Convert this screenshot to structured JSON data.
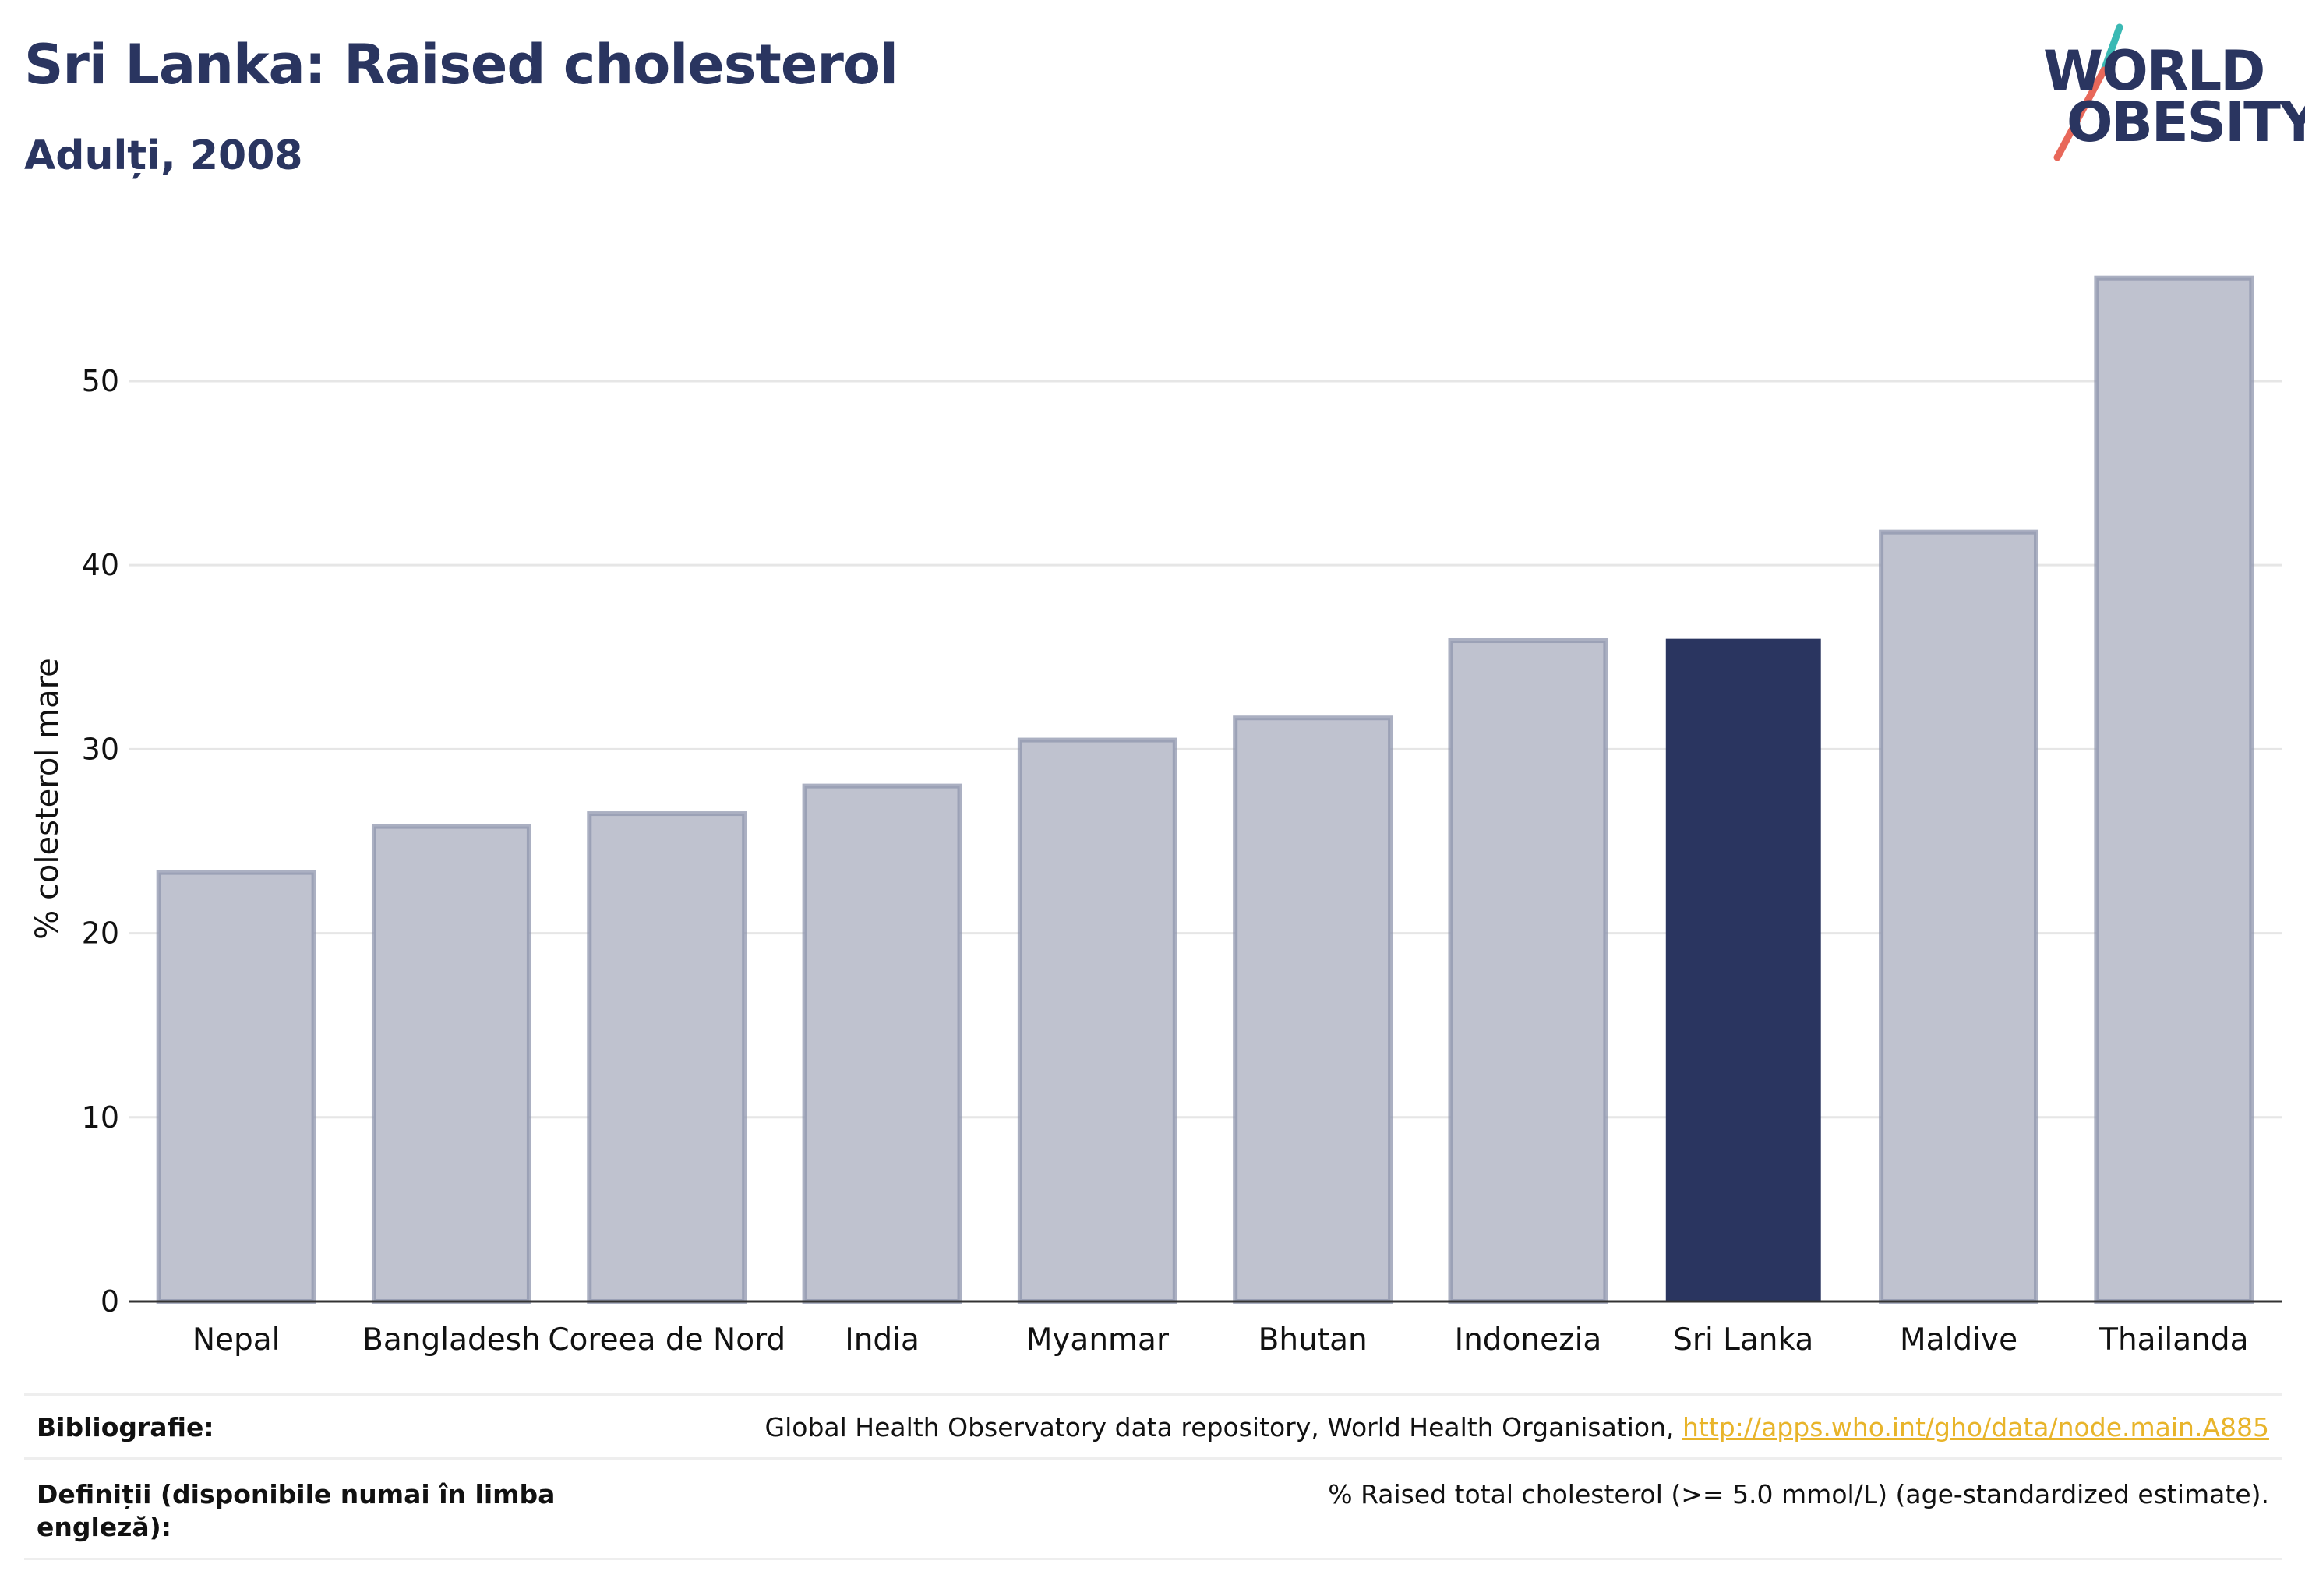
{
  "header": {
    "title": "Sri Lanka: Raised cholesterol",
    "subtitle": "Adulți, 2008"
  },
  "logo": {
    "line1": "WORLD",
    "line2": "OBESITY"
  },
  "chart_data": {
    "type": "bar",
    "categories": [
      "Nepal",
      "Bangladesh",
      "Coreea de Nord",
      "India",
      "Myanmar",
      "Bhutan",
      "Indonezia",
      "Sri Lanka",
      "Maldive",
      "Thailanda"
    ],
    "values": [
      23.3,
      25.8,
      26.5,
      28.0,
      30.5,
      31.7,
      35.9,
      36.0,
      41.8,
      55.6
    ],
    "highlight": "Sri Lanka",
    "ylabel": "% colesterol mare",
    "xlabel": "",
    "ylim": [
      0,
      58
    ],
    "yticks": [
      0,
      10,
      20,
      30,
      40,
      50
    ],
    "grid": true,
    "colors": {
      "bar": "#bfc2cf",
      "bar_border": "#8f95ae",
      "highlight": "#2a3560",
      "axis": "#333333",
      "grid": "#e6e6e6"
    }
  },
  "footer": {
    "source_label": "Bibliografie:",
    "source_text": "Global Health Observatory data repository, World Health Organisation, ",
    "source_link": "http://apps.who.int/gho/data/node.main.A885",
    "definition_label_line1": "Definiții (disponibile numai în limba",
    "definition_label_line2": "engleză):",
    "definition_text": "% Raised total cholesterol (>= 5.0 mmol/L) (age-standardized estimate)."
  }
}
